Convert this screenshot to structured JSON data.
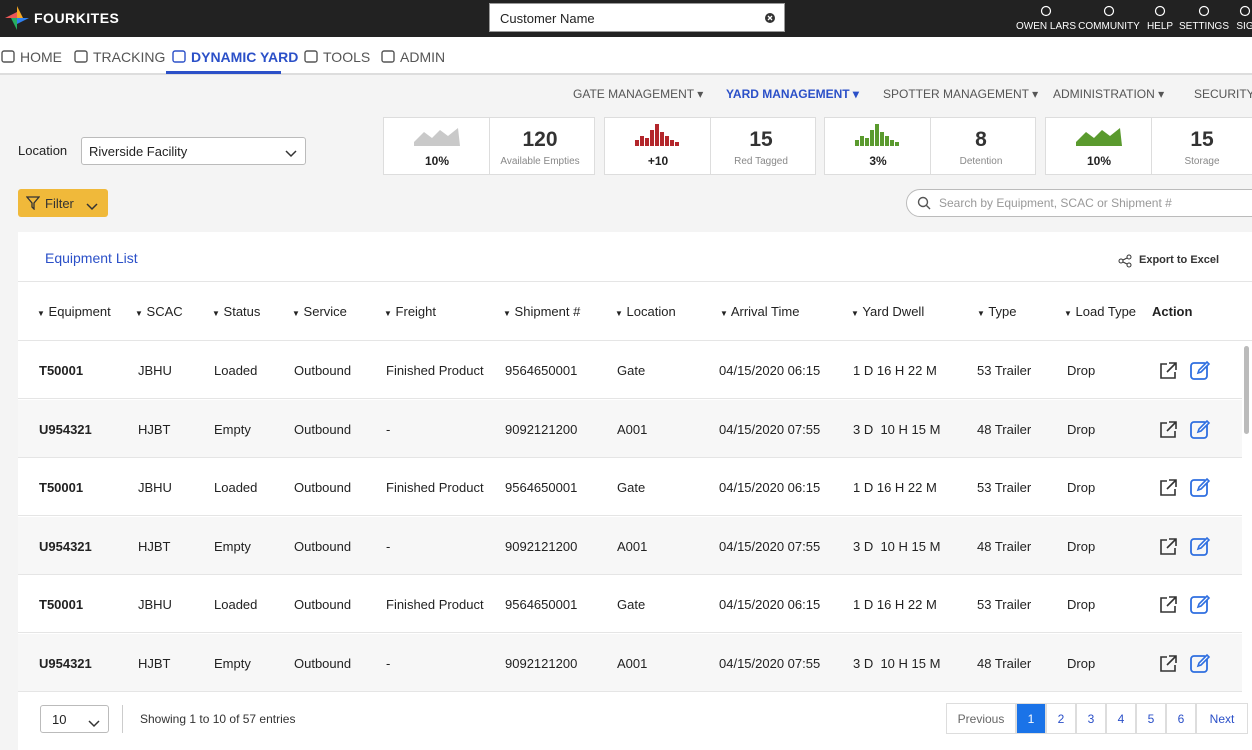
{
  "header": {
    "brand": "FOURKITES",
    "search": "Customer Name",
    "user_menu": [
      "OWEN LARS",
      "COMMUNITY",
      "HELP",
      "SETTINGS",
      "SIG"
    ]
  },
  "nav": {
    "items": [
      "HOME",
      "TRACKING",
      "DYNAMIC YARD",
      "TOOLS",
      "ADMIN"
    ],
    "active": 2
  },
  "subnav": {
    "items": [
      "GATE MANAGEMENT",
      "YARD MANAGEMENT",
      "SPOTTER MANAGEMENT",
      "ADMINISTRATION",
      "SECURITY"
    ],
    "active": 1
  },
  "location": {
    "label": "Location",
    "value": "Riverside Facility"
  },
  "stats": [
    {
      "trend": "10%",
      "value": 120,
      "label": "Available Empties",
      "chart": "area",
      "color": "#c9c9c9"
    },
    {
      "trend": "+10",
      "value": 15,
      "label": "Red Tagged",
      "chart": "bars",
      "color": "#b3262b"
    },
    {
      "trend": "3%",
      "value": 8,
      "label": "Detention",
      "chart": "bars",
      "color": "#5a9a2e"
    },
    {
      "trend": "10%",
      "value": 15,
      "label": "Storage",
      "chart": "area",
      "color": "#5a9a2e"
    }
  ],
  "filter": "Filter",
  "search_placeholder": "Search by Equipment, SCAC or Shipment #",
  "table": {
    "title": "Equipment List",
    "export": "Export to Excel",
    "columns": [
      "Equipment",
      "SCAC",
      "Status",
      "Service",
      "Freight",
      "Shipment #",
      "Location",
      "Arrival Time",
      "Yard Dwell",
      "Type",
      "Load Type"
    ],
    "action_column": "Action",
    "rows": [
      [
        "T50001",
        "JBHU",
        "Loaded",
        "Outbound",
        "Finished Product",
        "9564650001",
        "Gate",
        "04/15/2020 06:15",
        "1 D 16 H 22 M",
        "53 Trailer",
        "Drop"
      ],
      [
        "U954321",
        "HJBT",
        "Empty",
        "Outbound",
        "-",
        "9092121200",
        "A001",
        "04/15/2020 07:55",
        "3 D  10 H 15 M",
        "48 Trailer",
        "Drop"
      ],
      [
        "T50001",
        "JBHU",
        "Loaded",
        "Outbound",
        "Finished Product",
        "9564650001",
        "Gate",
        "04/15/2020 06:15",
        "1 D 16 H 22 M",
        "53 Trailer",
        "Drop"
      ],
      [
        "U954321",
        "HJBT",
        "Empty",
        "Outbound",
        "-",
        "9092121200",
        "A001",
        "04/15/2020 07:55",
        "3 D  10 H 15 M",
        "48 Trailer",
        "Drop"
      ],
      [
        "T50001",
        "JBHU",
        "Loaded",
        "Outbound",
        "Finished Product",
        "9564650001",
        "Gate",
        "04/15/2020 06:15",
        "1 D 16 H 22 M",
        "53 Trailer",
        "Drop"
      ],
      [
        "U954321",
        "HJBT",
        "Empty",
        "Outbound",
        "-",
        "9092121200",
        "A001",
        "04/15/2020 07:55",
        "3 D  10 H 15 M",
        "48 Trailer",
        "Drop"
      ]
    ]
  },
  "footer": {
    "page_size": "10",
    "info": "Showing 1 to 10 of 57 entries",
    "pages": [
      "Previous",
      "1",
      "2",
      "3",
      "4",
      "5",
      "6",
      "Next"
    ],
    "active": 1
  }
}
